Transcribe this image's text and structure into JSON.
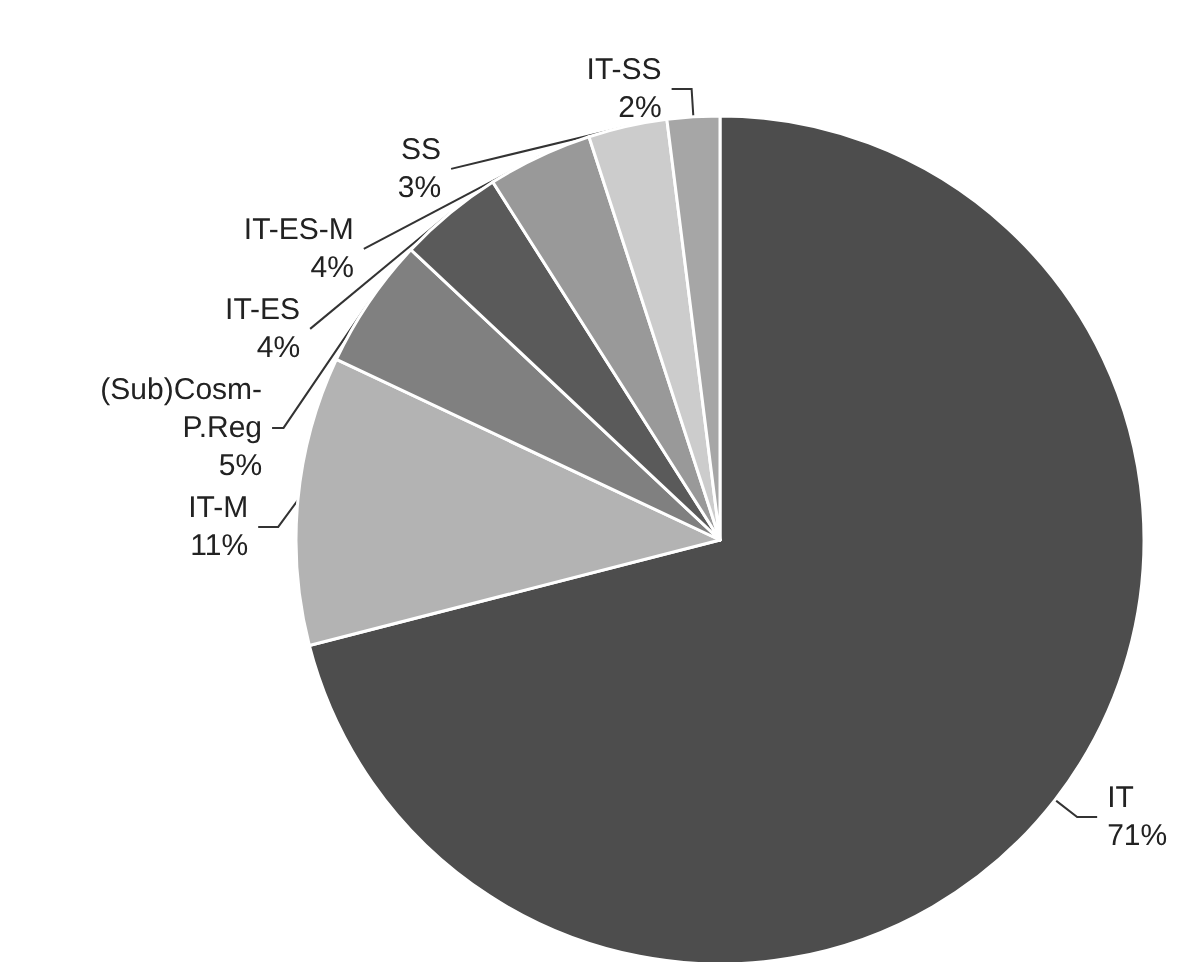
{
  "chart_data": {
    "type": "pie",
    "categories": [
      "IT",
      "IT-M",
      "(Sub)Cosm-\nP.Reg",
      "IT-ES",
      "IT-ES-M",
      "SS",
      "IT-SS"
    ],
    "values": [
      71,
      11,
      5,
      4,
      4,
      3,
      2
    ],
    "value_labels": [
      "71%",
      "11%",
      "5%",
      "4%",
      "4%",
      "3%",
      "2%"
    ],
    "colors": [
      "#4d4d4d",
      "#b3b3b3",
      "#808080",
      "#5a5a5a",
      "#999999",
      "#cccccc",
      "#a6a6a6"
    ],
    "legend": false
  }
}
